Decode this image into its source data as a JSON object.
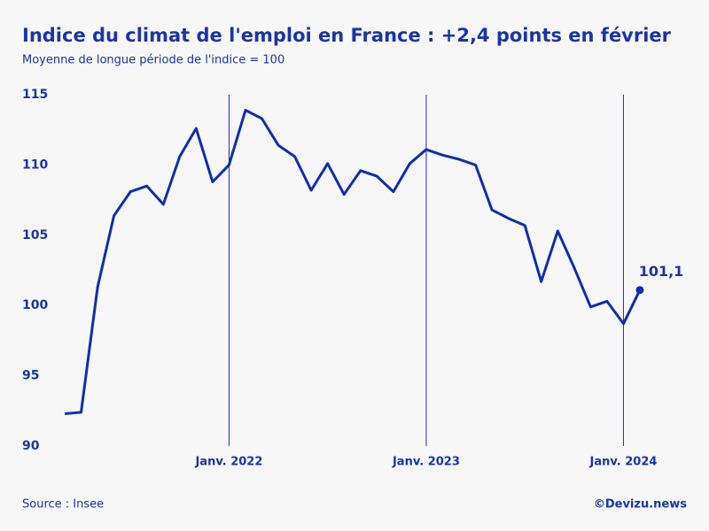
{
  "chart_data": {
    "type": "line",
    "title": "Indice du climat de l'emploi en France : +2,4 points en février",
    "subtitle": "Moyenne de longue période de l'indice = 100",
    "source": "Source : Insee",
    "credit": "©Devizu.news",
    "categories": [
      null,
      null,
      null,
      null,
      null,
      null,
      null,
      null,
      null,
      null,
      "Janv. 2022",
      null,
      null,
      null,
      null,
      null,
      null,
      null,
      null,
      null,
      null,
      null,
      "Janv. 2023",
      null,
      null,
      null,
      null,
      null,
      null,
      null,
      null,
      null,
      null,
      null,
      "Janv. 2024",
      null
    ],
    "series": [
      {
        "name": null,
        "color": "#0f2fb0",
        "values": [
          92.3,
          92.4,
          101.3,
          106.4,
          108.1,
          108.5,
          107.2,
          110.6,
          112.6,
          108.8,
          110.0,
          113.9,
          113.3,
          111.4,
          110.6,
          108.2,
          110.1,
          107.9,
          109.6,
          109.2,
          108.1,
          110.1,
          111.1,
          110.7,
          110.4,
          110.0,
          106.8,
          106.2,
          105.7,
          101.7,
          105.3,
          102.7,
          99.9,
          100.3,
          98.7,
          101.1
        ],
        "value_labels": [
          null,
          null,
          null,
          null,
          null,
          null,
          null,
          null,
          null,
          null,
          null,
          null,
          null,
          null,
          null,
          null,
          null,
          null,
          null,
          null,
          null,
          null,
          null,
          null,
          null,
          null,
          null,
          null,
          null,
          null,
          null,
          null,
          null,
          null,
          null,
          "101,1"
        ]
      }
    ],
    "ylim": [
      90,
      115
    ],
    "yticks": [
      90,
      95,
      100,
      105,
      110,
      115
    ],
    "grid": false
  }
}
